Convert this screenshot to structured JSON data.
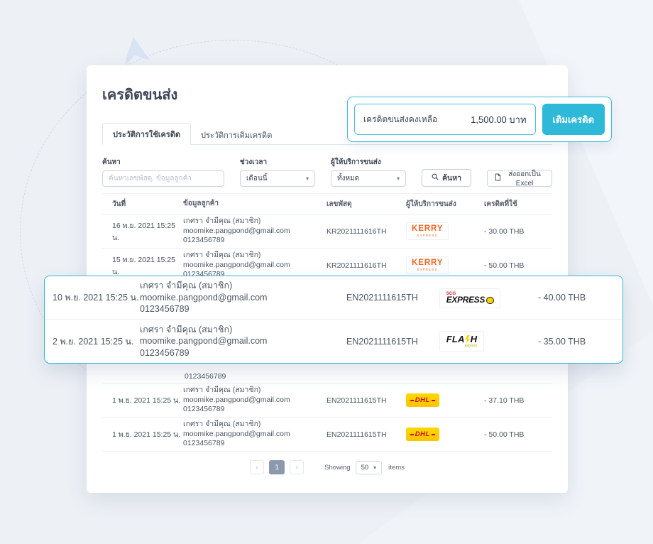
{
  "title": "เครดิตขนส่ง",
  "tabs": [
    {
      "label": "ประวัติการใช้เครดิต"
    },
    {
      "label": "ประวัติการเติมเครดิต"
    }
  ],
  "credit_box": {
    "label": "เครดิตขนส่งคงเหลือ",
    "value": "1,500.00 บาท",
    "button": "เติมเครดิต"
  },
  "filters": {
    "search_label": "ค้นหา",
    "search_placeholder": "ค้นหาเลขพัสดุ, ข้อมูลลูกค้า",
    "period_label": "ช่วงเวลา",
    "period_value": "เดือนนี้",
    "carrier_label": "ผู้ให้บริการขนส่ง",
    "carrier_value": "ทั้งหมด",
    "search_button": "ค้นหา",
    "export_button": "ส่งออกเป็น Excel"
  },
  "table": {
    "headers": [
      "วันที่",
      "ข้อมูลลูกค้า",
      "เลขพัสดุ",
      "ผู้ให้บริการขนส่ง",
      "เครดิตที่ใช้"
    ],
    "rows_top": [
      {
        "date": "16 พ.ย. 2021 15:25 น.",
        "name": "เกศรา จำมีคุณ (สมาชิก)",
        "email": "moomike.pangpond@gmail.com",
        "phone": "0123456789",
        "tracking": "KR2021111616TH",
        "carrier": "kerry",
        "amount": "- 30.00 THB"
      },
      {
        "date": "15 พ.ย. 2021 15:25 น.",
        "name": "เกศรา จำมีคุณ (สมาชิก)",
        "email": "moomike.pangpond@gmail.com",
        "phone": "0123456789",
        "tracking": "KR2021111616TH",
        "carrier": "kerry",
        "amount": "- 50.00 THB"
      }
    ],
    "hidden_row_remnant": "0123456789",
    "rows_bottom": [
      {
        "date": "1 พ.ย. 2021 15:25 น.",
        "name": "เกศรา จำมีคุณ (สมาชิก)",
        "email": "moomike.pangpond@gmail.com",
        "phone": "0123456789",
        "tracking": "EN2021111615TH",
        "carrier": "dhl",
        "amount": "- 37.10 THB"
      },
      {
        "date": "1 พ.ย. 2021 15:25 น.",
        "name": "เกศรา จำมีคุณ (สมาชิก)",
        "email": "moomike.pangpond@gmail.com",
        "phone": "0123456789",
        "tracking": "EN2021111615TH",
        "carrier": "dhl",
        "amount": "- 50.00 THB"
      }
    ]
  },
  "callout_rows": [
    {
      "date": "10 พ.ย. 2021 15:25 น.",
      "name": "เกศรา จำมีคุณ (สมาชิก)",
      "email": "moomike.pangpond@gmail.com",
      "phone": "0123456789",
      "tracking": "EN2021111615TH",
      "carrier": "scg",
      "amount": "- 40.00 THB"
    },
    {
      "date": "2 พ.ย. 2021 15:25 น.",
      "name": "เกศรา จำมีคุณ (สมาชิก)",
      "email": "moomike.pangpond@gmail.com",
      "phone": "0123456789",
      "tracking": "EN2021111615TH",
      "carrier": "flash",
      "amount": "- 35.00 THB"
    }
  ],
  "carriers": {
    "kerry": {
      "name": "Kerry Express",
      "text": "KERRY",
      "subtext": "EXPRESS",
      "color": "#f26622"
    },
    "scg": {
      "name": "SCG Express",
      "top": "SCG",
      "text": "EXPRESS",
      "accent": "#e31e26"
    },
    "flash": {
      "name": "Flash Express",
      "left": "FLA",
      "right": "H",
      "subtext": "express",
      "accent": "#ffd400"
    },
    "dhl": {
      "name": "DHL",
      "text": "DHL",
      "accent": "#d40511",
      "bg": "#ffcc00"
    }
  },
  "pagination": {
    "prev": "‹",
    "page": "1",
    "next": "›",
    "showing_label": "Showing",
    "per_page": "50",
    "items_label": "items"
  },
  "colors": {
    "accent": "#2eb9d8",
    "background": "#edf1f6"
  }
}
